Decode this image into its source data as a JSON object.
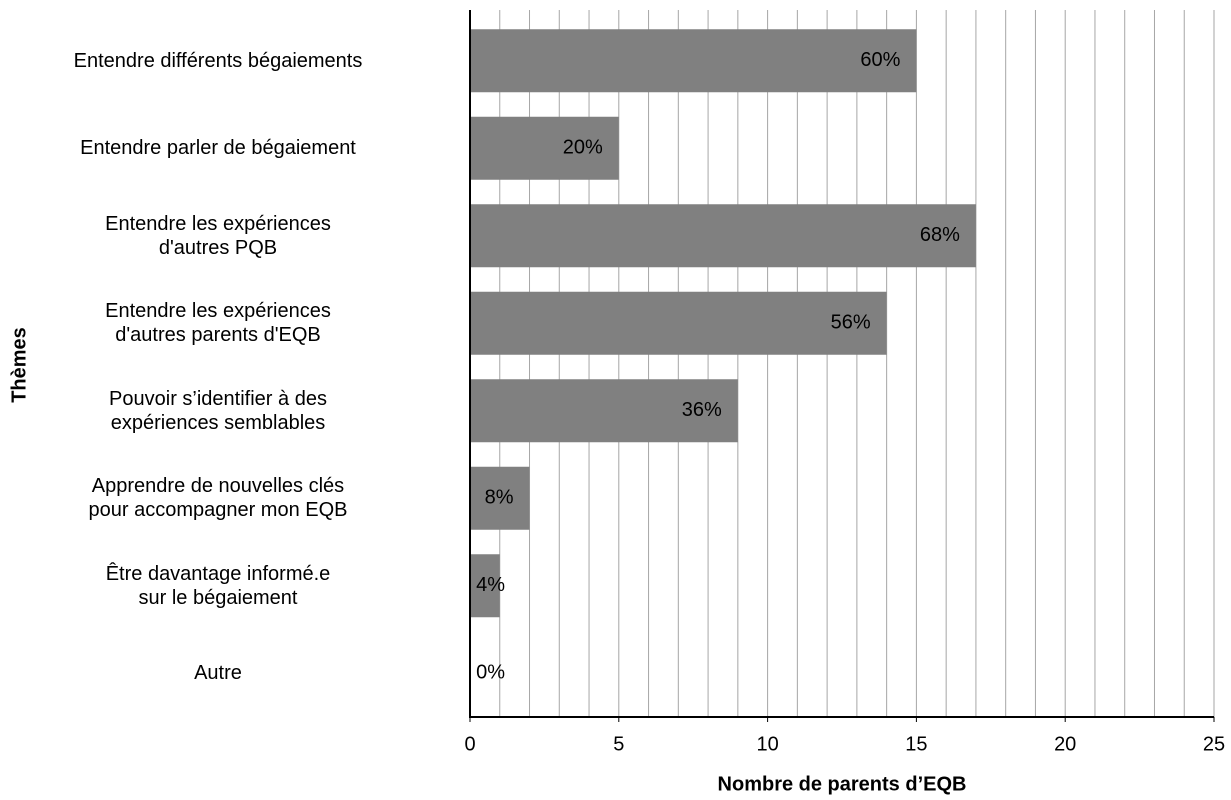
{
  "chart_data": {
    "type": "barh",
    "xlabel": "Nombre de parents d’EQB",
    "ylabel": "Thèmes",
    "categories": [
      "Entendre différents bégaiements",
      "Entendre parler de bégaiement",
      "Entendre les expériences\nd'autres PQB",
      "Entendre les expériences\nd'autres parents d'EQB",
      "Pouvoir s’identifier à des\nexpériences semblables",
      "Apprendre de nouvelles clés\npour accompagner mon EQB",
      "Être davantage informé.e\nsur le bégaiement",
      "Autre"
    ],
    "values": [
      15,
      5,
      17,
      14,
      9,
      2,
      1,
      0
    ],
    "value_labels": [
      "60%",
      "20%",
      "68%",
      "56%",
      "36%",
      "8%",
      "4%",
      "0%"
    ],
    "color": "#808080",
    "xlim": [
      0,
      25
    ],
    "xticks": [
      0,
      5,
      10,
      15,
      20,
      25
    ],
    "xminor_ticks": [
      1,
      2,
      3,
      4,
      5,
      6,
      7,
      8,
      9,
      10,
      11,
      12,
      13,
      14,
      15,
      16,
      17,
      18,
      19,
      20,
      21,
      22,
      23,
      24,
      25
    ],
    "grid": true
  }
}
